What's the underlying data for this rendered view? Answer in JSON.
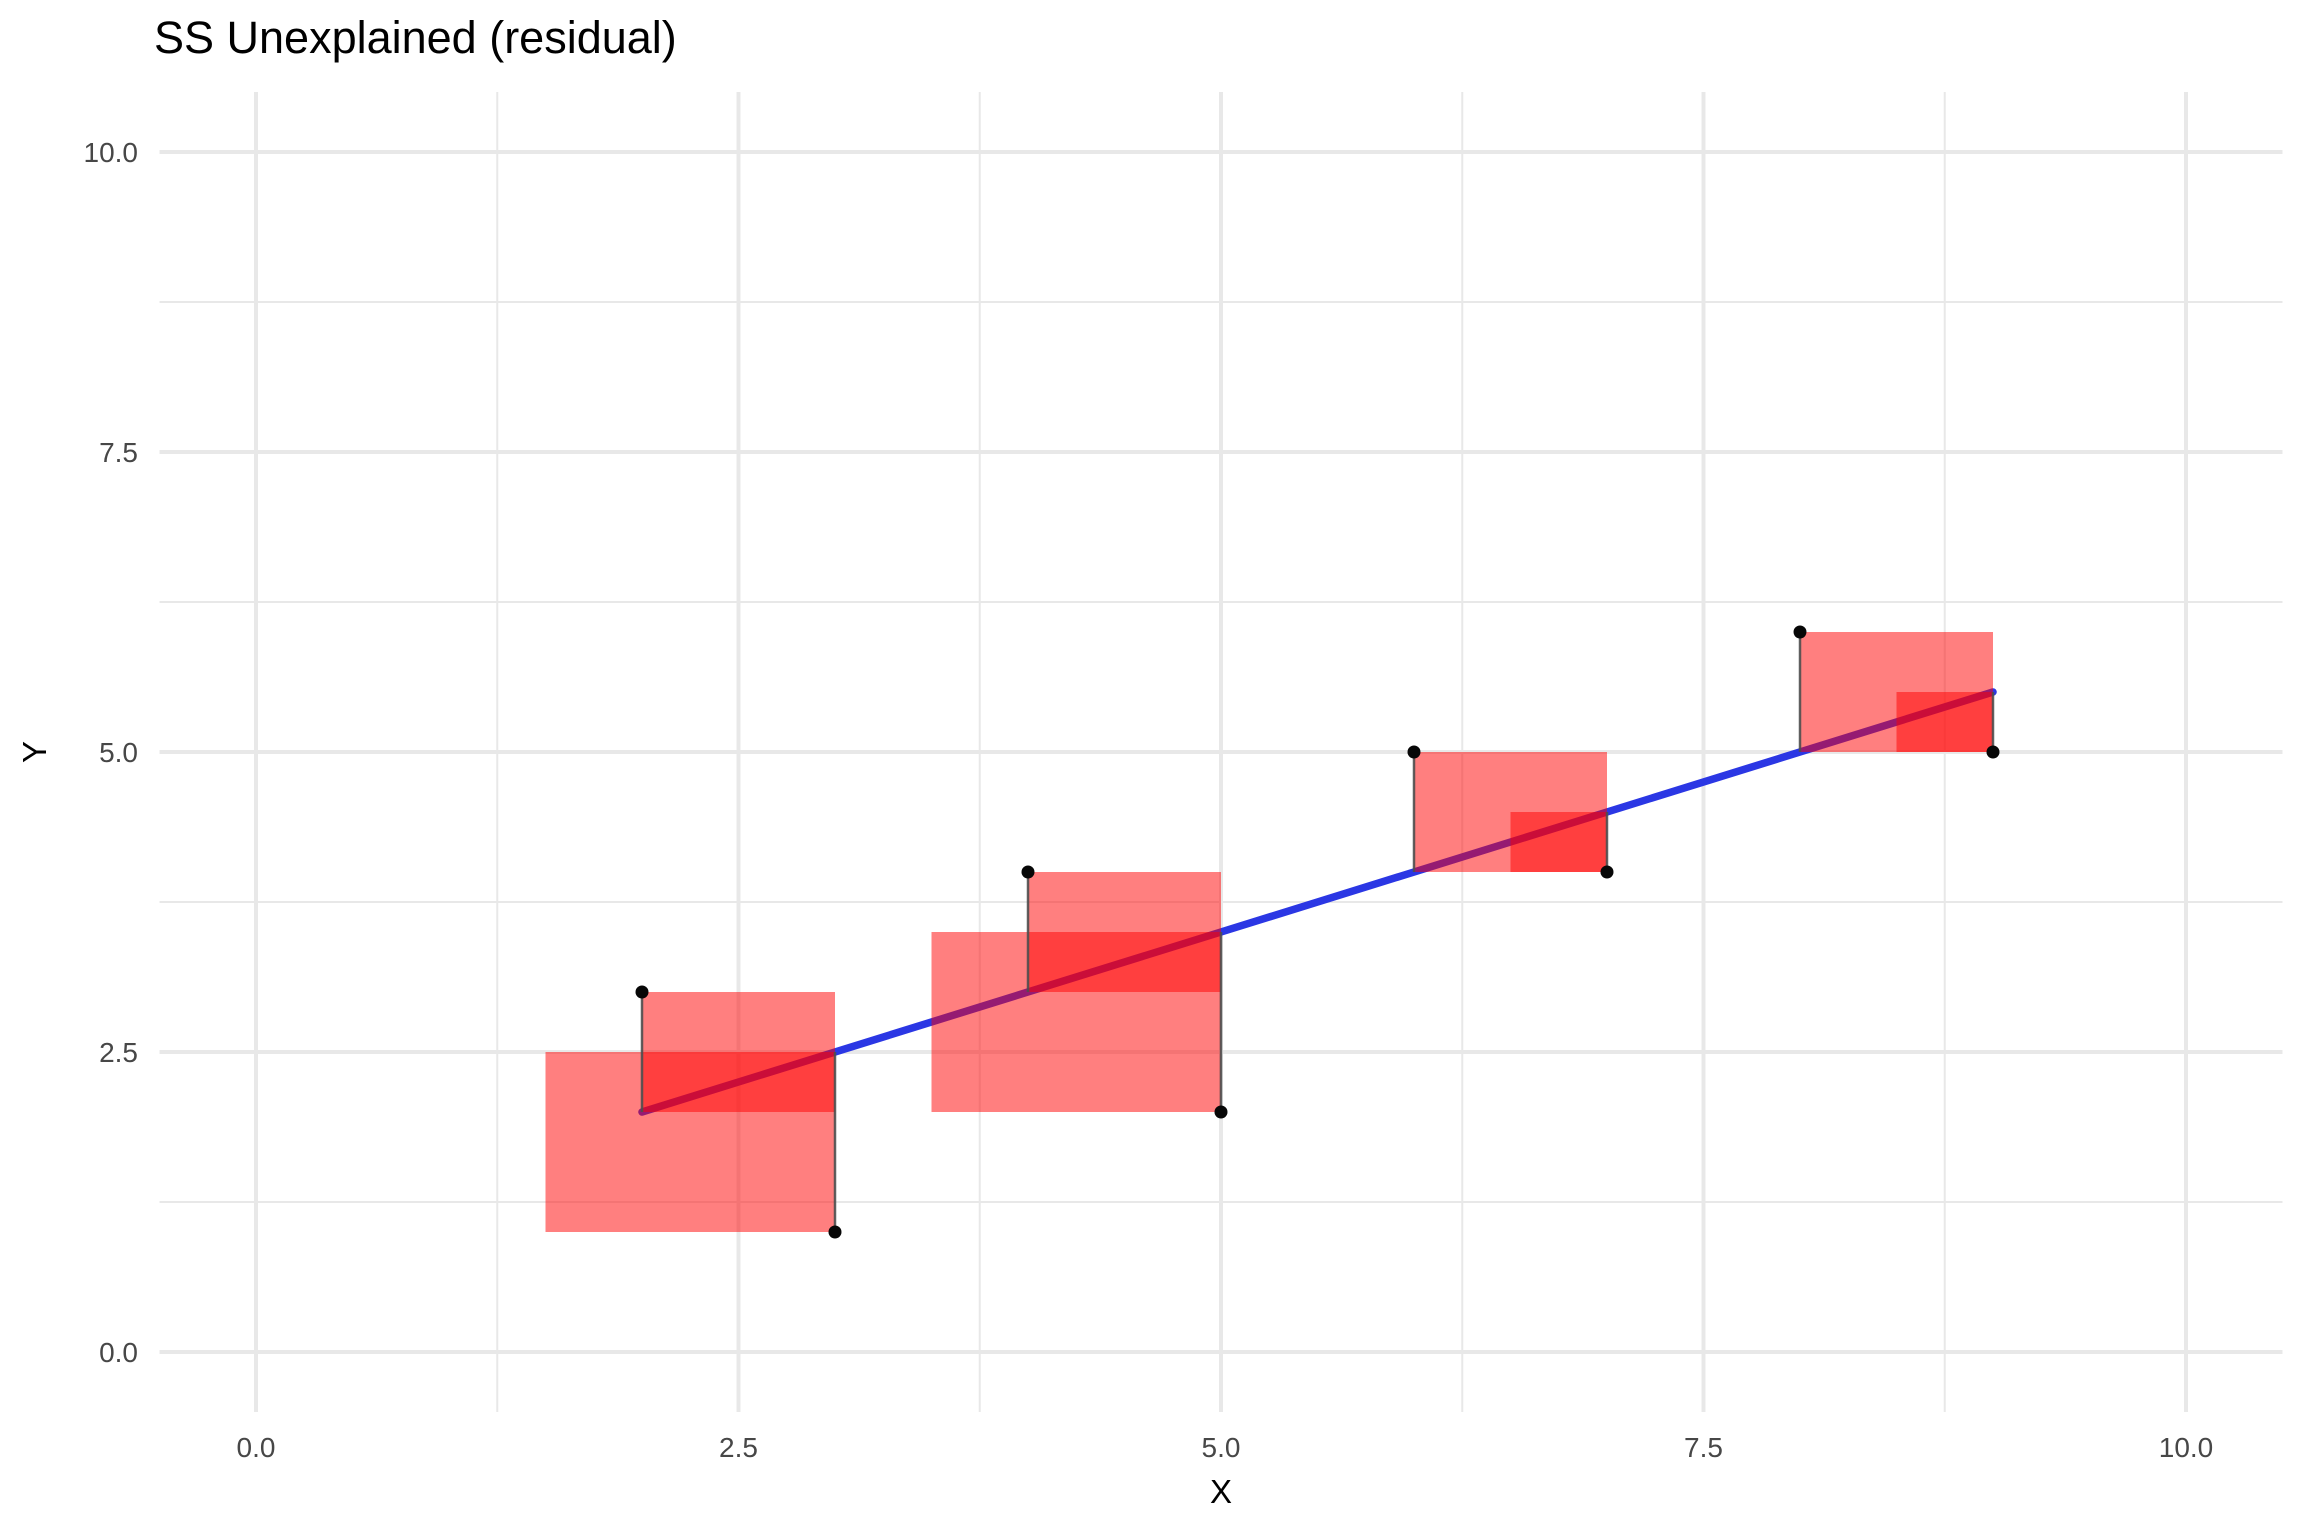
{
  "title": "SS Unexplained (residual)",
  "chart_data": {
    "type": "scatter",
    "title": "SS Unexplained (residual)",
    "xlabel": "X",
    "ylabel": "Y",
    "xlim": [
      0,
      10
    ],
    "ylim": [
      0,
      10
    ],
    "grid": "on",
    "legend": "none",
    "x_ticks": {
      "values": [
        0,
        2.5,
        5,
        7.5,
        10
      ],
      "labels": [
        "0.0",
        "2.5",
        "5.0",
        "7.5",
        "10.0"
      ]
    },
    "y_ticks": {
      "values": [
        0,
        2.5,
        5,
        7.5,
        10
      ],
      "labels": [
        "0.0",
        "2.5",
        "5.0",
        "7.5",
        "10.0"
      ]
    },
    "x_minor_ticks": [
      1.25,
      3.75,
      6.25,
      8.75
    ],
    "y_minor_ticks": [
      1.25,
      3.75,
      6.25,
      8.75
    ],
    "points": [
      [
        2,
        3
      ],
      [
        3,
        1
      ],
      [
        4,
        4
      ],
      [
        5,
        2
      ],
      [
        6,
        5
      ],
      [
        7,
        4
      ],
      [
        8,
        6
      ],
      [
        9,
        5
      ]
    ],
    "regression_line": {
      "intercept": 1.0,
      "slope": 0.5,
      "x_start": 2,
      "x_end": 9
    },
    "fitted_values": [
      2.0,
      2.5,
      3.0,
      3.5,
      4.0,
      4.5,
      5.0,
      5.5
    ],
    "residuals": [
      1.0,
      -1.5,
      1.0,
      -1.5,
      1.0,
      -0.5,
      1.0,
      -0.5
    ],
    "residual_squares": [
      {
        "x": [
          2.0,
          3.0
        ],
        "y": [
          2.0,
          3.0
        ]
      },
      {
        "x": [
          1.5,
          3.0
        ],
        "y": [
          1.0,
          2.5
        ]
      },
      {
        "x": [
          4.0,
          5.0
        ],
        "y": [
          3.0,
          4.0
        ]
      },
      {
        "x": [
          3.5,
          5.0
        ],
        "y": [
          2.0,
          3.5
        ]
      },
      {
        "x": [
          6.0,
          7.0
        ],
        "y": [
          4.0,
          5.0
        ]
      },
      {
        "x": [
          6.5,
          7.0
        ],
        "y": [
          4.0,
          4.5
        ]
      },
      {
        "x": [
          8.0,
          9.0
        ],
        "y": [
          5.0,
          6.0
        ]
      },
      {
        "x": [
          8.5,
          9.0
        ],
        "y": [
          5.0,
          5.5
        ]
      }
    ],
    "colors": {
      "background": "#ffffff",
      "grid": "#e8e8e8",
      "point": "#070707",
      "line": "#2b37e4",
      "square_fill": "#ff0000",
      "square_opacity": 0.5,
      "segment": "#4f4f4f",
      "tick_label": "#474747",
      "axis_title": "#000000",
      "title": "#000000"
    }
  }
}
